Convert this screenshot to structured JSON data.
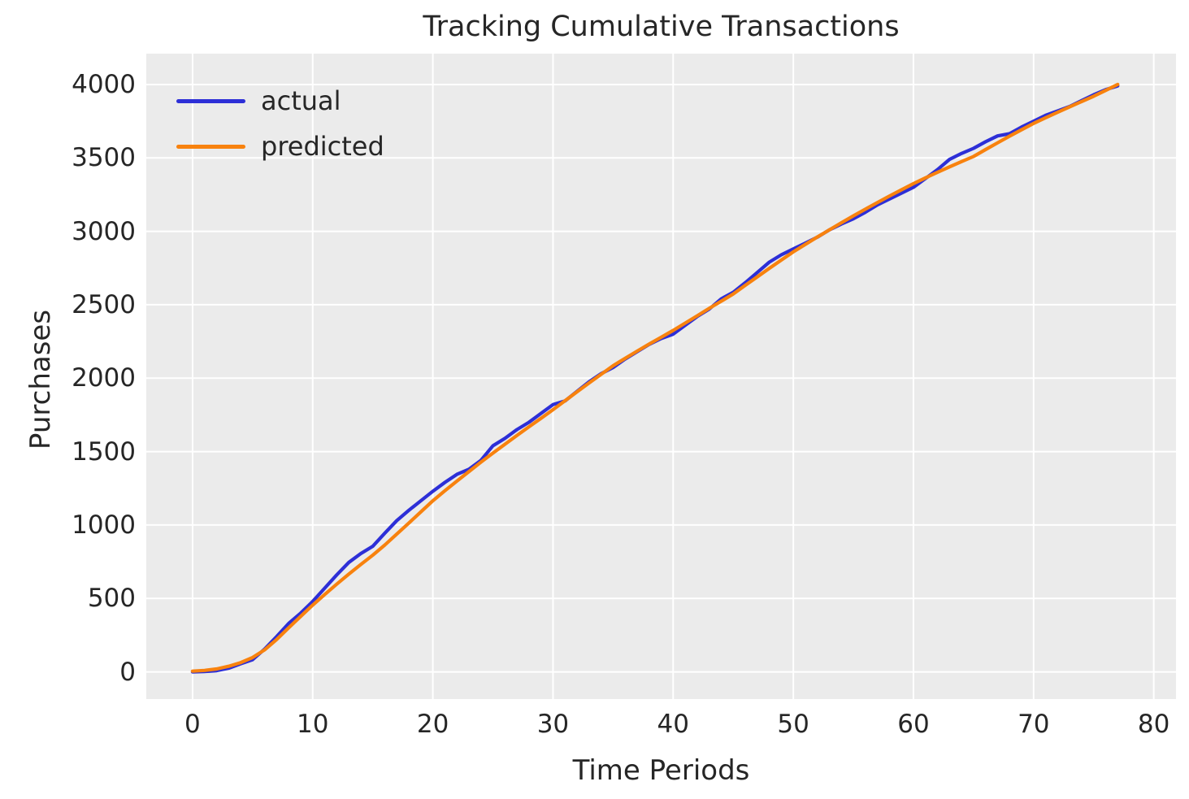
{
  "figure": {
    "title": "Tracking Cumulative Transactions",
    "xlabel": "Time Periods",
    "ylabel": "Purchases"
  },
  "legend": {
    "position": "upper left",
    "items": [
      {
        "label": "actual",
        "color": "#2d2fd7"
      },
      {
        "label": "predicted",
        "color": "#f8820e"
      }
    ]
  },
  "colors": {
    "plot_background": "#ebebeb",
    "grid": "#ffffff",
    "text": "#262626",
    "actual_line": "#2d2fd7",
    "predicted_line": "#f8820e"
  },
  "chart_data": {
    "type": "line",
    "title": "Tracking Cumulative Transactions",
    "xlabel": "Time Periods",
    "ylabel": "Purchases",
    "grid": true,
    "legend_position": "upper left",
    "xticks": [
      0,
      10,
      20,
      30,
      40,
      50,
      60,
      70,
      80
    ],
    "yticks": [
      0,
      500,
      1000,
      1500,
      2000,
      2500,
      3000,
      3500,
      4000
    ],
    "xlim": [
      -3.85,
      81.85
    ],
    "ylim": [
      -185,
      4210
    ],
    "x": [
      0,
      1,
      2,
      3,
      4,
      5,
      6,
      7,
      8,
      9,
      10,
      11,
      12,
      13,
      14,
      15,
      16,
      17,
      18,
      19,
      20,
      21,
      22,
      23,
      24,
      25,
      26,
      27,
      28,
      29,
      30,
      31,
      32,
      33,
      34,
      35,
      36,
      37,
      38,
      39,
      40,
      41,
      42,
      43,
      44,
      45,
      46,
      47,
      48,
      49,
      50,
      51,
      52,
      53,
      54,
      55,
      56,
      57,
      58,
      59,
      60,
      61,
      62,
      63,
      64,
      65,
      66,
      67,
      68,
      69,
      70,
      71,
      72,
      73,
      74,
      75,
      76,
      77
    ],
    "series": [
      {
        "name": "actual",
        "color": "#2d2fd7",
        "values": [
          0,
          2,
          8,
          25,
          55,
          83,
          155,
          240,
          330,
          400,
          480,
          570,
          660,
          745,
          805,
          855,
          945,
          1030,
          1100,
          1165,
          1230,
          1290,
          1345,
          1380,
          1440,
          1540,
          1590,
          1650,
          1700,
          1760,
          1820,
          1845,
          1910,
          1975,
          2030,
          2073,
          2130,
          2180,
          2230,
          2270,
          2300,
          2360,
          2420,
          2470,
          2540,
          2585,
          2650,
          2720,
          2790,
          2840,
          2880,
          2920,
          2960,
          3010,
          3050,
          3085,
          3130,
          3180,
          3220,
          3260,
          3300,
          3360,
          3420,
          3490,
          3530,
          3565,
          3610,
          3650,
          3665,
          3710,
          3750,
          3790,
          3820,
          3850,
          3890,
          3930,
          3965,
          3990
        ]
      },
      {
        "name": "predicted",
        "color": "#f8820e",
        "values": [
          5,
          10,
          20,
          38,
          63,
          98,
          150,
          220,
          300,
          378,
          455,
          527,
          597,
          665,
          731,
          795,
          864,
          938,
          1013,
          1089,
          1165,
          1233,
          1299,
          1364,
          1428,
          1490,
          1550,
          1610,
          1669,
          1727,
          1785,
          1846,
          1907,
          1967,
          2026,
          2085,
          2135,
          2184,
          2232,
          2279,
          2325,
          2375,
          2425,
          2475,
          2524,
          2573,
          2632,
          2690,
          2748,
          2804,
          2860,
          2911,
          2961,
          3010,
          3058,
          3105,
          3151,
          3196,
          3240,
          3283,
          3325,
          3364,
          3402,
          3439,
          3475,
          3510,
          3557,
          3603,
          3648,
          3692,
          3735,
          3773,
          3811,
          3848,
          3884,
          3920,
          3960,
          4000
        ]
      }
    ]
  }
}
